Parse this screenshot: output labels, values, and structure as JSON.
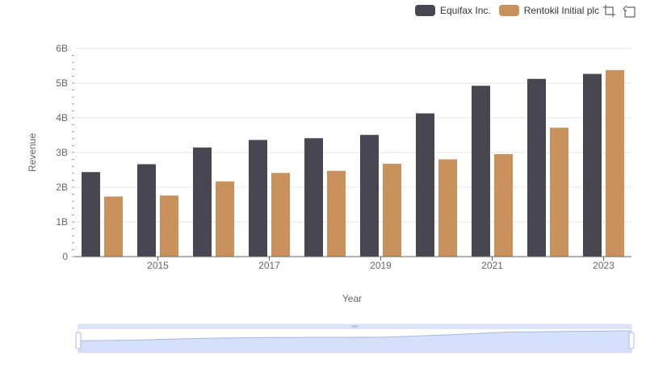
{
  "legend": [
    {
      "name": "Equifax Inc.",
      "color": "#474651"
    },
    {
      "name": "Rentokil Initial plc",
      "color": "#c9925c"
    }
  ],
  "toolbox": {
    "zoom_icon": "zoom-select-icon",
    "restore_icon": "zoom-reset-icon"
  },
  "chart_data": {
    "type": "bar",
    "xlabel": "Year",
    "ylabel": "Revenue",
    "ylim": [
      0,
      6000000000
    ],
    "y_ticks": [
      "0",
      "1B",
      "2B",
      "3B",
      "4B",
      "5B",
      "6B"
    ],
    "x_ticks": [
      "2015",
      "2017",
      "2019",
      "2021",
      "2023"
    ],
    "categories": [
      "2014",
      "2015",
      "2016",
      "2017",
      "2018",
      "2019",
      "2020",
      "2021",
      "2022",
      "2023"
    ],
    "series": [
      {
        "name": "Equifax Inc.",
        "color": "#474651",
        "values": [
          2436400000,
          2663600000,
          3144900000,
          3362200000,
          3412100000,
          3507600000,
          4127500000,
          4923900000,
          5122200000,
          5265200000
        ]
      },
      {
        "name": "Rentokil Initial plc",
        "color": "#c9925c",
        "values": [
          1731500000,
          1759900000,
          2168200000,
          2412100000,
          2472300000,
          2676100000,
          2803900000,
          2953900000,
          3714100000,
          5375000000
        ]
      }
    ],
    "grid": true,
    "legend_position": "top-right"
  }
}
